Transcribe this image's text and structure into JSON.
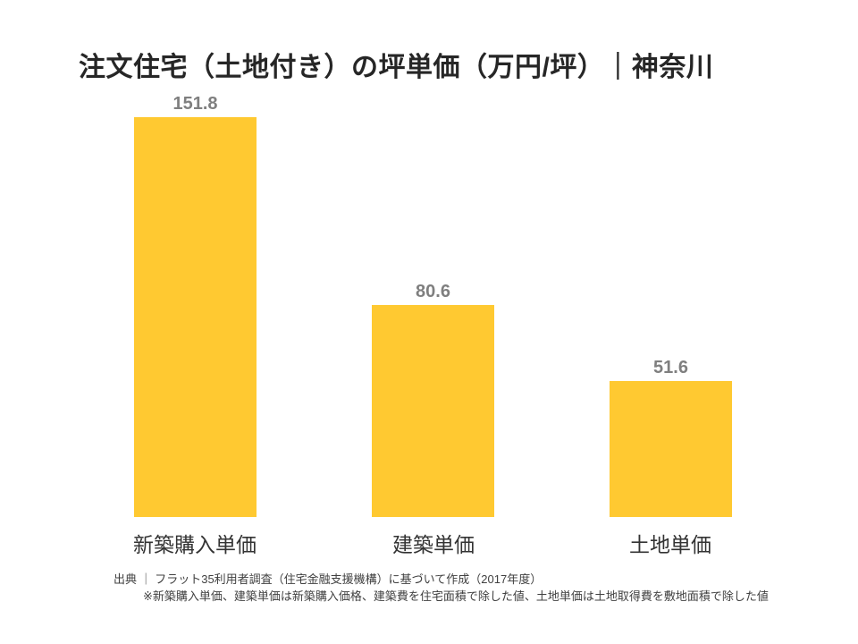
{
  "title": "注文住宅（土地付き）の坪単価（万円/坪）｜神奈川",
  "chart_data": {
    "type": "bar",
    "categories": [
      "新築購入単価",
      "建築単価",
      "土地単価"
    ],
    "values": [
      151.8,
      80.6,
      51.6
    ],
    "value_labels": [
      "151.8",
      "80.6",
      "51.6"
    ],
    "title": "注文住宅（土地付き）の坪単価（万円/坪）｜神奈川",
    "xlabel": "",
    "ylabel": "",
    "ylim": [
      0,
      160
    ],
    "grid": false,
    "legend": false,
    "bar_color": "#ffc931",
    "value_label_color": "#7f7f7f"
  },
  "footer": {
    "source_line": "出典 ｜ フラット35利用者調査（住宅金融支援機構）に基づいて作成（2017年度）",
    "note_line": "※新築購入単価、建築単価は新築購入価格、建築費を住宅面積で除した値、土地単価は土地取得費を敷地面積で除した値"
  }
}
